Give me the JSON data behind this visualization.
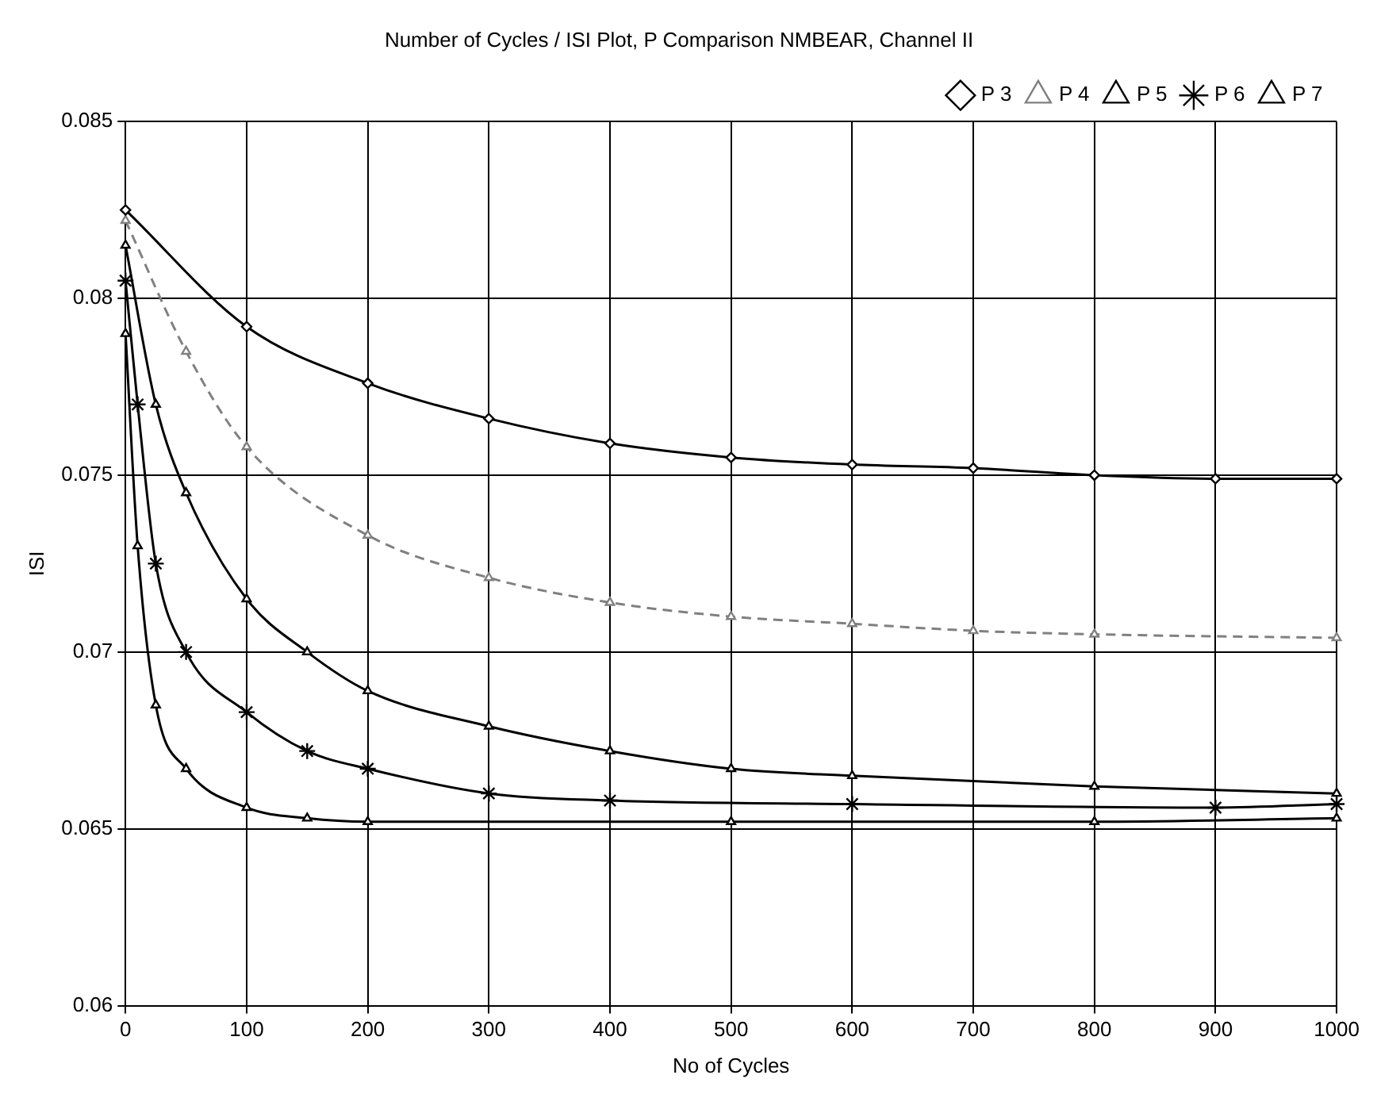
{
  "chart_data": {
    "type": "line",
    "title": "Number of Cycles / ISI Plot, P Comparison NMBEAR, Channel II",
    "xlabel": "No of Cycles",
    "ylabel": "ISI",
    "xlim": [
      0,
      1000
    ],
    "xticks": [
      0,
      100,
      200,
      300,
      400,
      500,
      600,
      700,
      800,
      900,
      1000
    ],
    "ylim": [
      0.06,
      0.085
    ],
    "yticks": [
      0.06,
      0.065,
      0.07,
      0.075,
      0.08,
      0.085
    ],
    "grid": true,
    "legend": "top right",
    "series": [
      {
        "name": "P 3",
        "color": "#000000",
        "marker": "diamond",
        "line_style": "solid",
        "x": [
          0,
          100,
          200,
          300,
          400,
          500,
          600,
          700,
          800,
          900,
          1000
        ],
        "values": [
          0.0825,
          0.0792,
          0.0776,
          0.0766,
          0.0759,
          0.0755,
          0.0753,
          0.0752,
          0.075,
          0.0749,
          0.0749
        ]
      },
      {
        "name": "P 4",
        "color": "#808080",
        "marker": "triangle",
        "line_style": "dashed",
        "x": [
          0,
          50,
          100,
          200,
          300,
          400,
          500,
          600,
          700,
          800,
          1000
        ],
        "values": [
          0.0822,
          0.0785,
          0.0758,
          0.0733,
          0.0721,
          0.0714,
          0.071,
          0.0708,
          0.0706,
          0.0705,
          0.0704
        ]
      },
      {
        "name": "P 5",
        "color": "#000000",
        "marker": "triangle",
        "line_style": "solid",
        "x": [
          0,
          25,
          50,
          100,
          150,
          200,
          300,
          400,
          500,
          600,
          800,
          1000
        ],
        "values": [
          0.0815,
          0.077,
          0.0745,
          0.0715,
          0.07,
          0.0689,
          0.0679,
          0.0672,
          0.0667,
          0.0665,
          0.0662,
          0.066
        ]
      },
      {
        "name": "P 6",
        "color": "#000000",
        "marker": "cross",
        "line_style": "solid",
        "x": [
          0,
          10,
          25,
          50,
          100,
          150,
          200,
          300,
          400,
          600,
          900,
          1000
        ],
        "values": [
          0.0805,
          0.077,
          0.0725,
          0.07,
          0.0683,
          0.0672,
          0.0667,
          0.066,
          0.0658,
          0.0657,
          0.0656,
          0.0657
        ]
      },
      {
        "name": "P 7",
        "color": "#000000",
        "marker": "triangle",
        "line_style": "solid",
        "x": [
          0,
          10,
          25,
          50,
          100,
          150,
          200,
          500,
          800,
          1000
        ],
        "values": [
          0.079,
          0.073,
          0.0685,
          0.0667,
          0.0656,
          0.0653,
          0.0652,
          0.0652,
          0.0652,
          0.0653
        ]
      }
    ]
  }
}
